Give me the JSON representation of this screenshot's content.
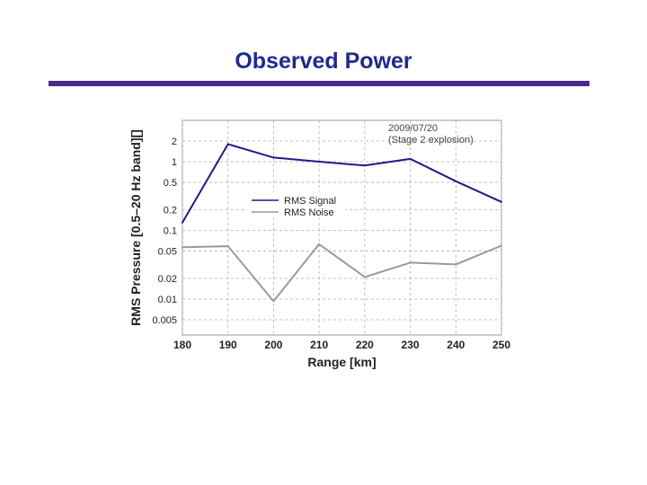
{
  "slide": {
    "title": "Observed Power",
    "rule_color": "#4a2a8a",
    "title_color": "#1f2a8c"
  },
  "chart_data": {
    "type": "line",
    "title": "",
    "xlabel": "Range [km]",
    "ylabel": "RMS Pressure [0.5–20 Hz band][]",
    "x": [
      180,
      190,
      200,
      210,
      220,
      230,
      240,
      250
    ],
    "xlim": [
      180,
      250
    ],
    "ylim": [
      0.003,
      4
    ],
    "yscale": "log",
    "xticks": [
      "180",
      "190",
      "200",
      "210",
      "220",
      "230",
      "240",
      "250"
    ],
    "yticks": [
      {
        "value": 2,
        "label": "2"
      },
      {
        "value": 1,
        "label": "1"
      },
      {
        "value": 0.5,
        "label": "0.5"
      },
      {
        "value": 0.2,
        "label": "0.2"
      },
      {
        "value": 0.1,
        "label": "0.1"
      },
      {
        "value": 0.05,
        "label": "0.05"
      },
      {
        "value": 0.02,
        "label": "0.02"
      },
      {
        "value": 0.01,
        "label": "0.01"
      },
      {
        "value": 0.005,
        "label": "0.005"
      }
    ],
    "grid": true,
    "legend_position": "center",
    "annotation": [
      "2009/07/20",
      "(Stage 2 explosion)"
    ],
    "series": [
      {
        "name": "RMS Signal",
        "color": "#1c1c8c",
        "values": [
          0.13,
          1.8,
          1.15,
          1.0,
          0.88,
          1.1,
          0.52,
          0.26
        ]
      },
      {
        "name": "RMS Noise",
        "color": "#9a9a9a",
        "values": [
          0.057,
          0.059,
          0.0093,
          0.063,
          0.021,
          0.034,
          0.032,
          0.06
        ]
      }
    ]
  }
}
